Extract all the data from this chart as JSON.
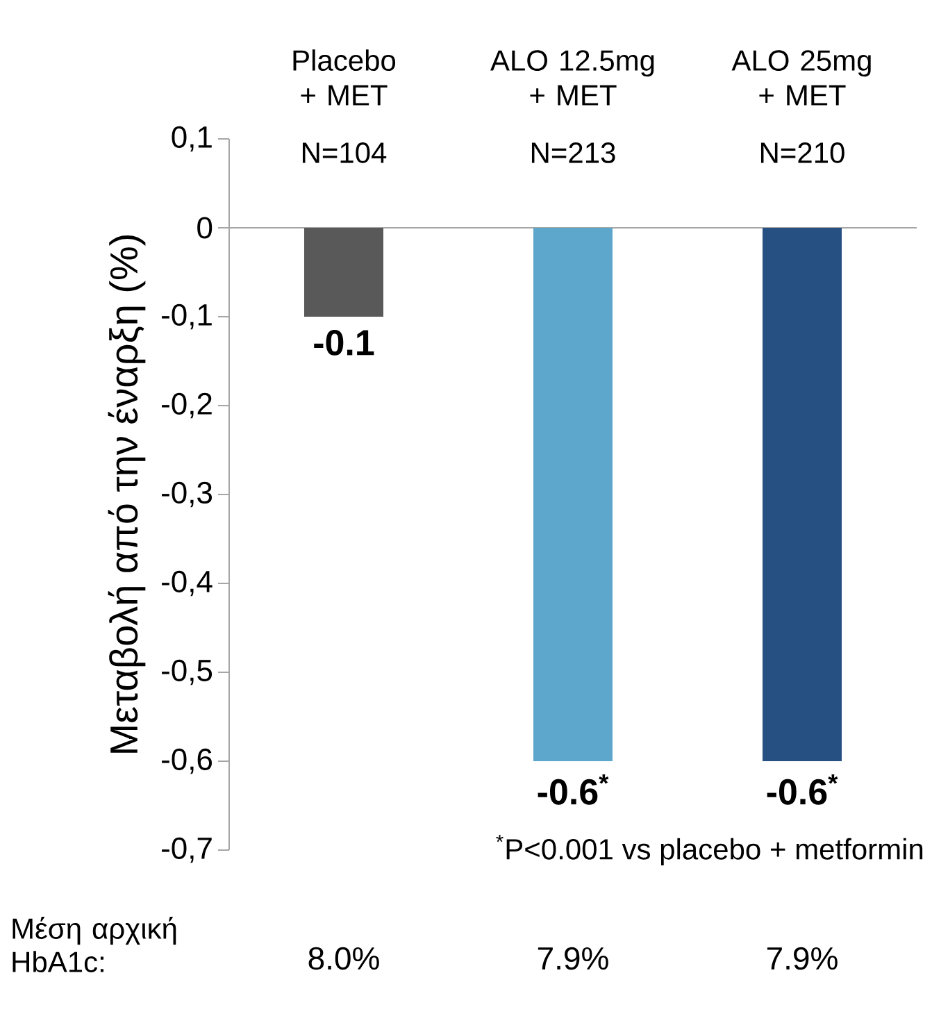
{
  "chart_data": {
    "type": "bar",
    "categories": [
      "Placebo + MET",
      "ALO 12.5mg + MET",
      "ALO 25mg + MET"
    ],
    "values": [
      -0.1,
      -0.6,
      -0.6
    ],
    "colors": [
      "#595959",
      "#5ea7cc",
      "#264f82"
    ],
    "value_labels": [
      "-0.1",
      "-0.6$^{*}$",
      "-0.6$^{*}$"
    ],
    "ylabel": "Μεταβολή από την έναρξη  (%)",
    "ylim": [
      -0.7,
      0.1
    ],
    "yticks": [
      {
        "value": 0.1,
        "label": "0,1"
      },
      0,
      {
        "value": -0.1,
        "label": "-0,1"
      },
      {
        "value": -0.2,
        "label": "-0,2"
      },
      {
        "value": -0.3,
        "label": "-0,3"
      },
      {
        "value": -0.4,
        "label": "-0,4"
      },
      {
        "value": -0.5,
        "label": "-0,5"
      },
      {
        "value": -0.6,
        "label": "-0,6"
      },
      {
        "value": -0.7,
        "label": "-0,7"
      }
    ],
    "annotations": [
      "N=104",
      "N=213",
      "N=210",
      "$^{*}$P<0.001 vs placebo + metformin",
      "Μέση αρχική HbA1c:",
      "8.0%",
      "7.9%",
      "7.9%"
    ]
  }
}
